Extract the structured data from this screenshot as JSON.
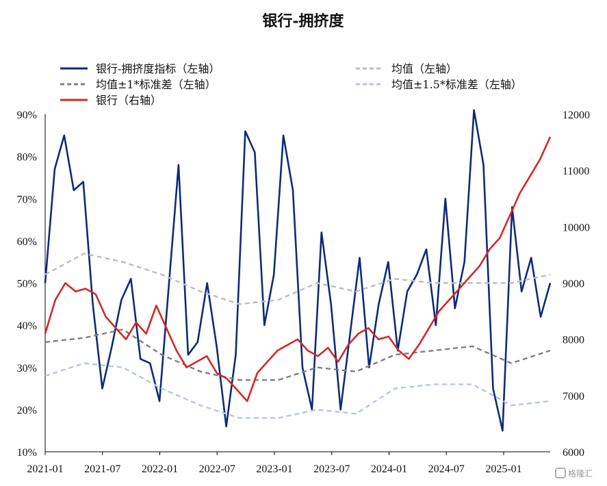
{
  "chart_data": {
    "type": "line",
    "title": "银行-拥挤度",
    "x_ticks": [
      "2021-01",
      "2021-07",
      "2022-01",
      "2022-07",
      "2023-01",
      "2023-07",
      "2024-01",
      "2024-07",
      "2025-01"
    ],
    "y_left": {
      "min": 10,
      "max": 90,
      "ticks": [
        "10%",
        "20%",
        "30%",
        "40%",
        "50%",
        "60%",
        "70%",
        "80%",
        "90%"
      ]
    },
    "y_right": {
      "min": 6000,
      "max": 12000,
      "ticks": [
        "6000",
        "7000",
        "8000",
        "9000",
        "10000",
        "11000",
        "12000"
      ]
    },
    "legend": {
      "crowding": "银行-拥挤度指标（左轴）",
      "mean": "均值（左轴）",
      "std1": "均值±1*标准差（左轴）",
      "std15": "均值±1.5*标准差（左轴）",
      "bank": "银行（右轴）"
    },
    "colors": {
      "crowding": "#0d2a7a",
      "mean": "#bdbdbd",
      "std1": "#7f7f7f",
      "std15": "#b4c7e7",
      "bank": "#d62728"
    },
    "series": [
      {
        "name": "银行-拥挤度指标（左轴）",
        "axis": "left",
        "style": "solid",
        "x": [
          0,
          1,
          2,
          3,
          4,
          5,
          6,
          7,
          8,
          9,
          10,
          11,
          12,
          13,
          14,
          15,
          16,
          17,
          18,
          19,
          20,
          21,
          22,
          23,
          24,
          25,
          26,
          27,
          28,
          29,
          30,
          31,
          32,
          33,
          34,
          35,
          36,
          37,
          38,
          39,
          40,
          41,
          42,
          43,
          44,
          45,
          46,
          47,
          48,
          49,
          50,
          51,
          52,
          53
        ],
        "y": [
          50,
          77,
          85,
          72,
          74,
          45,
          25,
          35,
          46,
          51,
          32,
          31,
          22,
          50,
          78,
          33,
          36,
          50,
          35,
          16,
          33,
          86,
          81,
          40,
          52,
          85,
          72,
          30,
          20,
          62,
          45,
          20,
          38,
          56,
          30,
          45,
          55,
          34,
          48,
          52,
          58,
          40,
          70,
          44,
          55,
          91,
          78,
          25,
          15,
          68,
          48,
          56,
          42,
          50
        ]
      },
      {
        "name": "均值（左轴）",
        "axis": "left",
        "style": "dashed",
        "x": [
          0,
          4,
          8,
          12,
          16,
          20,
          24,
          28,
          32,
          36,
          40,
          44,
          48,
          52
        ],
        "y": [
          52,
          57,
          55,
          52,
          48,
          45,
          46,
          50,
          48,
          51,
          50,
          50,
          50,
          52
        ]
      },
      {
        "name": "均值±1*标准差（左轴）",
        "axis": "left",
        "style": "dashed",
        "x": [
          0,
          4,
          8,
          12,
          16,
          20,
          24,
          28,
          32,
          36,
          40,
          44,
          48,
          52
        ],
        "y": [
          36,
          37,
          39,
          33,
          29,
          27,
          27,
          30,
          29,
          33,
          34,
          35,
          31,
          34
        ]
      },
      {
        "name": "均值±1.5*标准差（左轴）",
        "axis": "left",
        "style": "dashed",
        "x": [
          0,
          4,
          8,
          12,
          16,
          20,
          24,
          28,
          32,
          36,
          40,
          44,
          48,
          52
        ],
        "y": [
          28,
          31,
          30,
          25,
          21,
          18,
          18,
          20,
          19,
          25,
          26,
          26,
          21,
          22
        ]
      },
      {
        "name": "银行（右轴）",
        "axis": "right",
        "style": "solid",
        "x": [
          0,
          2,
          4,
          6,
          8,
          10,
          12,
          14,
          16,
          18,
          20,
          22,
          24,
          26,
          28,
          30,
          32,
          34,
          36,
          38,
          40,
          42,
          44,
          46,
          48,
          50,
          52,
          54,
          56,
          58,
          60,
          62,
          64,
          66,
          68,
          70,
          72,
          74,
          76,
          78,
          80,
          82,
          84,
          86,
          88,
          90,
          92,
          94,
          96,
          98,
          100
        ],
        "y": [
          8100,
          8700,
          9000,
          8850,
          8900,
          8800,
          8400,
          8200,
          8000,
          8300,
          8100,
          8600,
          8200,
          7800,
          7500,
          7600,
          7700,
          7400,
          7300,
          7100,
          6900,
          7400,
          7600,
          7800,
          7900,
          8000,
          7800,
          7700,
          7850,
          7600,
          7900,
          8100,
          8200,
          8000,
          8050,
          7800,
          7650,
          7900,
          8200,
          8500,
          8700,
          8900,
          9100,
          9300,
          9600,
          9800,
          10200,
          10600,
          10900,
          11200,
          11600
        ]
      }
    ]
  },
  "watermark": "格隆汇"
}
